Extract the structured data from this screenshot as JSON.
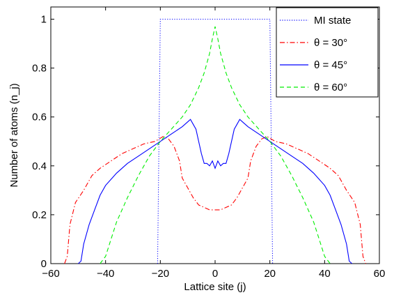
{
  "chart_data": {
    "type": "line",
    "xlabel": "Lattice site (j)",
    "ylabel": "Number of atoms (n_j)",
    "xlim": [
      -60,
      60
    ],
    "ylim": [
      0,
      1.05
    ],
    "x_ticks": [
      "-60",
      "-40",
      "-20",
      "0",
      "20",
      "40",
      "60"
    ],
    "y_ticks": [
      "0",
      "0.2",
      "0.4",
      "0.6",
      "0.8",
      "1"
    ],
    "grid": false,
    "legend_position": "top-right",
    "series": [
      {
        "name": "MI state",
        "color": "#0000ff",
        "style": "dotted",
        "points": [
          [
            -21,
            0
          ],
          [
            -20,
            1
          ],
          [
            20,
            1
          ],
          [
            21,
            0
          ]
        ]
      },
      {
        "name": "θ = 30°",
        "color": "#ff0000",
        "style": "dashdot",
        "points": [
          [
            -55,
            0
          ],
          [
            -54,
            0.03
          ],
          [
            -53,
            0.16
          ],
          [
            -51,
            0.25
          ],
          [
            -48,
            0.3
          ],
          [
            -45,
            0.36
          ],
          [
            -42,
            0.39
          ],
          [
            -38,
            0.42
          ],
          [
            -34,
            0.45
          ],
          [
            -30,
            0.47
          ],
          [
            -26,
            0.49
          ],
          [
            -22,
            0.5
          ],
          [
            -19,
            0.52
          ],
          [
            -17,
            0.51
          ],
          [
            -15,
            0.48
          ],
          [
            -13,
            0.42
          ],
          [
            -12,
            0.35
          ],
          [
            -10,
            0.31
          ],
          [
            -8,
            0.27
          ],
          [
            -6,
            0.24
          ],
          [
            -4,
            0.23
          ],
          [
            -2,
            0.22
          ],
          [
            0,
            0.22
          ],
          [
            2,
            0.22
          ],
          [
            4,
            0.23
          ],
          [
            6,
            0.24
          ],
          [
            8,
            0.27
          ],
          [
            10,
            0.31
          ],
          [
            12,
            0.35
          ],
          [
            13,
            0.42
          ],
          [
            15,
            0.48
          ],
          [
            17,
            0.51
          ],
          [
            19,
            0.52
          ],
          [
            22,
            0.5
          ],
          [
            26,
            0.49
          ],
          [
            30,
            0.47
          ],
          [
            34,
            0.45
          ],
          [
            38,
            0.42
          ],
          [
            42,
            0.39
          ],
          [
            45,
            0.36
          ],
          [
            48,
            0.3
          ],
          [
            51,
            0.25
          ],
          [
            53,
            0.16
          ],
          [
            54,
            0.03
          ],
          [
            55,
            0
          ]
        ]
      },
      {
        "name": "θ = 45°",
        "color": "#0000ff",
        "style": "solid",
        "points": [
          [
            -50,
            0
          ],
          [
            -49,
            0.01
          ],
          [
            -48,
            0.08
          ],
          [
            -46,
            0.16
          ],
          [
            -44,
            0.22
          ],
          [
            -42,
            0.28
          ],
          [
            -40,
            0.32
          ],
          [
            -36,
            0.37
          ],
          [
            -32,
            0.41
          ],
          [
            -28,
            0.44
          ],
          [
            -24,
            0.47
          ],
          [
            -20,
            0.5
          ],
          [
            -16,
            0.53
          ],
          [
            -12,
            0.56
          ],
          [
            -10,
            0.58
          ],
          [
            -9,
            0.59
          ],
          [
            -8,
            0.57
          ],
          [
            -7,
            0.55
          ],
          [
            -6,
            0.5
          ],
          [
            -5,
            0.45
          ],
          [
            -4,
            0.41
          ],
          [
            -3,
            0.41
          ],
          [
            -2,
            0.4
          ],
          [
            -1,
            0.42
          ],
          [
            0,
            0.39
          ],
          [
            1,
            0.42
          ],
          [
            2,
            0.4
          ],
          [
            3,
            0.41
          ],
          [
            4,
            0.41
          ],
          [
            5,
            0.45
          ],
          [
            6,
            0.5
          ],
          [
            7,
            0.55
          ],
          [
            8,
            0.57
          ],
          [
            9,
            0.59
          ],
          [
            10,
            0.58
          ],
          [
            12,
            0.56
          ],
          [
            16,
            0.53
          ],
          [
            20,
            0.5
          ],
          [
            24,
            0.47
          ],
          [
            28,
            0.44
          ],
          [
            32,
            0.41
          ],
          [
            36,
            0.37
          ],
          [
            40,
            0.32
          ],
          [
            42,
            0.28
          ],
          [
            44,
            0.22
          ],
          [
            46,
            0.16
          ],
          [
            48,
            0.08
          ],
          [
            49,
            0.01
          ],
          [
            50,
            0
          ]
        ]
      },
      {
        "name": "θ = 60°",
        "color": "#00ee00",
        "style": "dashed",
        "points": [
          [
            -42,
            0
          ],
          [
            -40,
            0.03
          ],
          [
            -38,
            0.1
          ],
          [
            -36,
            0.17
          ],
          [
            -32,
            0.27
          ],
          [
            -28,
            0.36
          ],
          [
            -24,
            0.44
          ],
          [
            -20,
            0.5
          ],
          [
            -16,
            0.55
          ],
          [
            -12,
            0.6
          ],
          [
            -9,
            0.65
          ],
          [
            -6,
            0.72
          ],
          [
            -4,
            0.78
          ],
          [
            -2,
            0.86
          ],
          [
            -1,
            0.92
          ],
          [
            0,
            0.97
          ],
          [
            1,
            0.92
          ],
          [
            2,
            0.86
          ],
          [
            4,
            0.78
          ],
          [
            6,
            0.72
          ],
          [
            9,
            0.65
          ],
          [
            12,
            0.6
          ],
          [
            16,
            0.55
          ],
          [
            20,
            0.5
          ],
          [
            24,
            0.44
          ],
          [
            28,
            0.36
          ],
          [
            32,
            0.27
          ],
          [
            36,
            0.17
          ],
          [
            38,
            0.1
          ],
          [
            40,
            0.03
          ],
          [
            42,
            0
          ]
        ]
      }
    ]
  }
}
